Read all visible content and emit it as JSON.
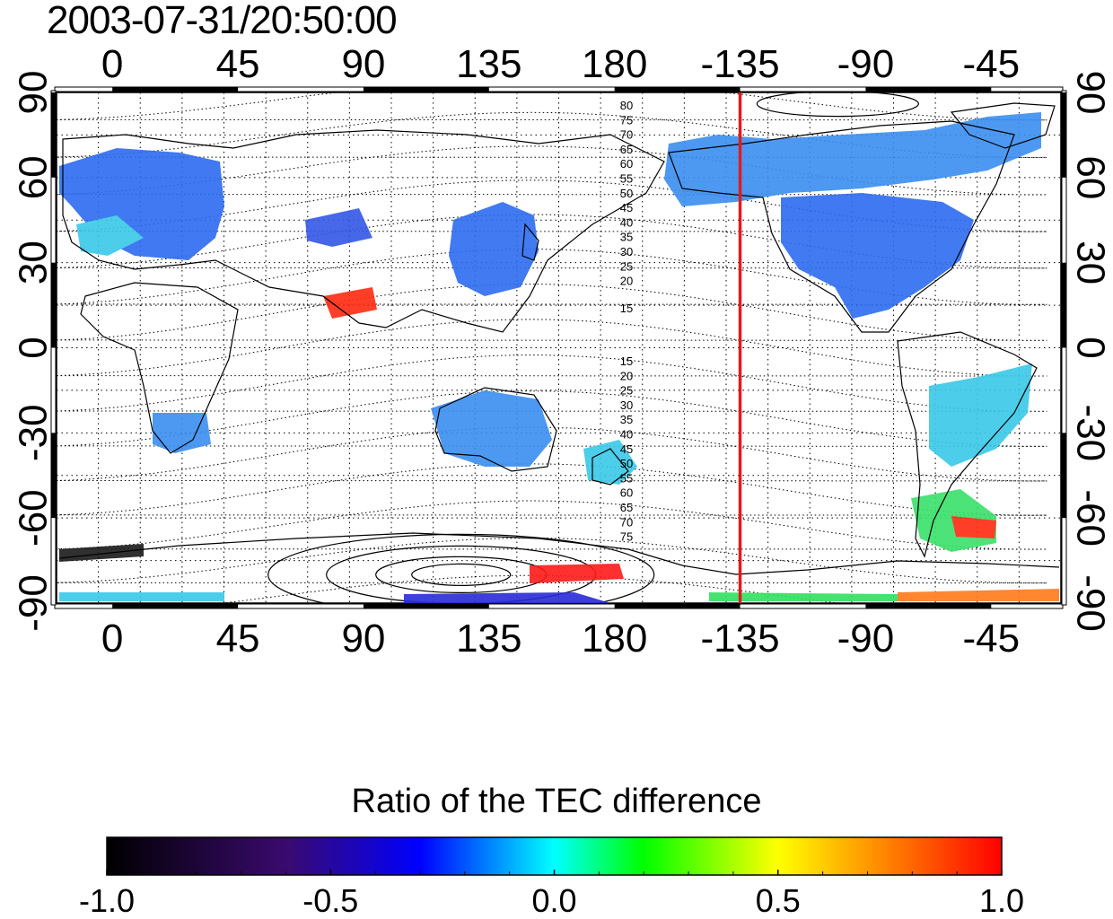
{
  "timestamp": "2003-07-31/20:50:00",
  "map": {
    "lon_tick_labels": [
      "0",
      "45",
      "90",
      "135",
      "180",
      "-135",
      "-90",
      "-45"
    ],
    "lat_tick_labels": [
      "90",
      "60",
      "30",
      "0",
      "-30",
      "-60",
      "-90"
    ],
    "dip_contour_labels_north": [
      "80",
      "75",
      "70",
      "65",
      "60",
      "55",
      "50",
      "45",
      "40",
      "35",
      "30",
      "25",
      "20",
      "15"
    ],
    "dip_contour_labels_south": [
      "15",
      "20",
      "25",
      "30",
      "35",
      "40",
      "45",
      "50",
      "55",
      "60",
      "65",
      "70",
      "75"
    ],
    "highlight_meridian_lon": -135,
    "highlight_color": "#e31a1c",
    "coastline_color": "#000000"
  },
  "colorbar": {
    "title": "Ratio of the TEC difference",
    "tick_labels": [
      "-1.0",
      "-0.5",
      "0.0",
      "0.5",
      "1.0"
    ],
    "range": [
      -1.0,
      1.0
    ],
    "colors": [
      "#000000",
      "#3a0a6e",
      "#0000ff",
      "#00ffff",
      "#00ff00",
      "#ffff00",
      "#ff0000"
    ]
  }
}
